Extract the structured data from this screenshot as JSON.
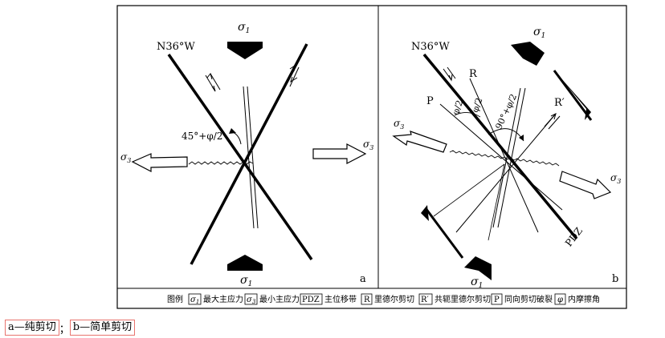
{
  "panel_a": {
    "north_label": "N36°W",
    "sigma1_top": "σ",
    "sigma1_top_sub": "1",
    "sigma1_bottom": "σ",
    "sigma1_bottom_sub": "1",
    "sigma3_left": "σ",
    "sigma3_left_sub": "3",
    "sigma3_right": "σ",
    "sigma3_right_sub": "3",
    "angle_label": "45°+φ/2",
    "panel_letter": "a"
  },
  "panel_b": {
    "north_label": "N36°W",
    "sigma1_top": "σ",
    "sigma1_top_sub": "1",
    "sigma1_bottom": "σ",
    "sigma1_bottom_sub": "1",
    "sigma3_left": "σ",
    "sigma3_left_sub": "3",
    "sigma3_right": "σ",
    "sigma3_right_sub": "3",
    "label_R": "R",
    "label_P": "P",
    "label_R_prime": "R′",
    "angle_phi_1": "φ/2",
    "angle_phi_2": "φ/2",
    "angle_90": "90°+φ/2",
    "pdz_label": "PDZ",
    "panel_letter": "b"
  },
  "legend": {
    "title": "图例",
    "items": [
      {
        "key": "σ1",
        "key_main": "σ",
        "key_sub": "1",
        "label": "最大主应力"
      },
      {
        "key": "σ3",
        "key_main": "σ",
        "key_sub": "3",
        "label": "最小主应力"
      },
      {
        "key": "PDZ",
        "key_main": "PDZ",
        "key_sub": "",
        "label": "主位移带"
      },
      {
        "key": "R",
        "key_main": "R",
        "key_sub": "",
        "label": "里德尔剪切"
      },
      {
        "key": "R′",
        "key_main": "R′",
        "key_sub": "",
        "label": "共轭里德尔剪切"
      },
      {
        "key": "P",
        "key_main": "P",
        "key_sub": "",
        "label": "同向剪切破裂"
      },
      {
        "key": "φ",
        "key_main": "φ",
        "key_sub": "",
        "label": "内摩擦角"
      }
    ]
  },
  "caption": {
    "part1": "a—纯剪切",
    "separator": "；",
    "part2": "b—简单剪切"
  }
}
